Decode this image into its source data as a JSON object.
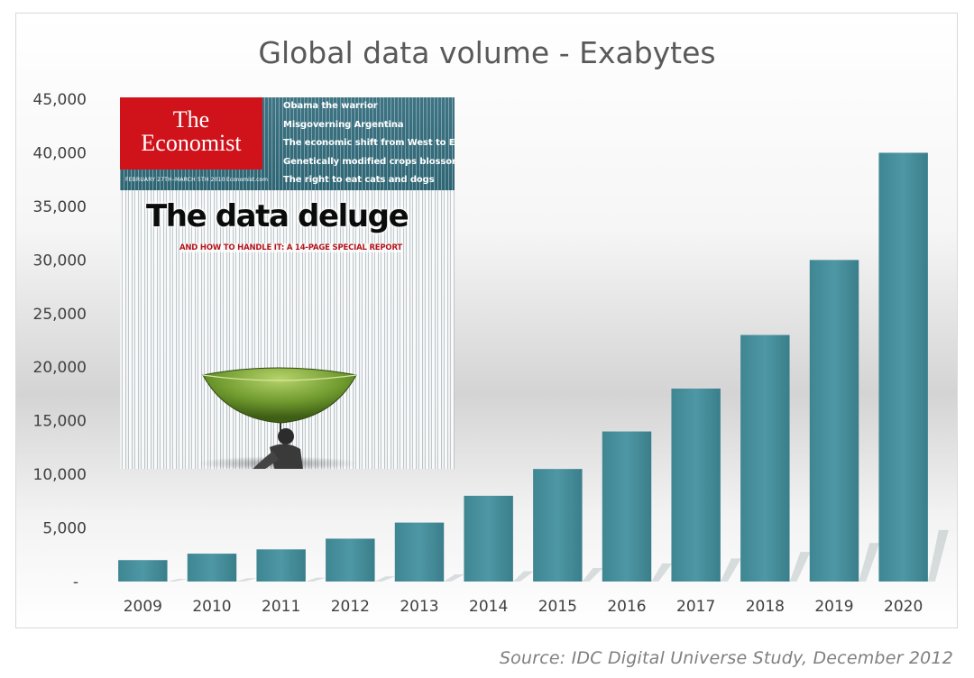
{
  "chart_data": {
    "type": "bar",
    "title": "Global data volume - Exabytes",
    "categories": [
      "2009",
      "2010",
      "2011",
      "2012",
      "2013",
      "2014",
      "2015",
      "2016",
      "2017",
      "2018",
      "2019",
      "2020"
    ],
    "values": [
      2000,
      2600,
      3000,
      4000,
      5500,
      8000,
      10500,
      14000,
      18000,
      23000,
      30000,
      40000
    ],
    "ylim": [
      0,
      45000
    ],
    "yticks": [
      0,
      5000,
      10000,
      15000,
      20000,
      25000,
      30000,
      35000,
      40000,
      45000
    ],
    "ytick_labels": [
      "-",
      "5,000",
      "10,000",
      "15,000",
      "20,000",
      "25,000",
      "30,000",
      "35,000",
      "40,000",
      "45,000"
    ],
    "xlabel": "",
    "ylabel": "",
    "grid": false,
    "legend": "none",
    "bar_color": "#4a8f9c"
  },
  "source": "Source: IDC Digital Universe Study, December 2012",
  "cover": {
    "logo_line1": "The",
    "logo_line2": "Economist",
    "date": "FEBRUARY 27TH–MARCH 5TH 2010",
    "website": "Economist.com",
    "headlines": [
      "Obama the warrior",
      "Misgoverning Argentina",
      "The economic shift from West to East",
      "Genetically modified crops blossom",
      "The right to eat cats and dogs"
    ],
    "title": "The data deluge",
    "subtitle": "AND HOW TO HANDLE IT: A 14-PAGE SPECIAL REPORT",
    "header_color": "#326a79",
    "logo_color": "#d0121b"
  }
}
